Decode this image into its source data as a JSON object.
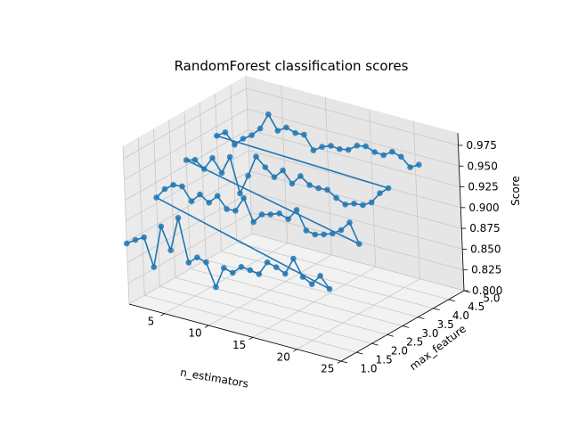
{
  "chart_data": {
    "type": "line",
    "projection": "3d",
    "title": "RandomForest classification scores",
    "xlabel": "n_estimators",
    "ylabel": "max_feature",
    "zlabel": "Score",
    "xlim": [
      1,
      25
    ],
    "ylim": [
      1.0,
      5.0
    ],
    "zlim": [
      0.8,
      0.99
    ],
    "xticks": [
      "5",
      "10",
      "15",
      "20",
      "25"
    ],
    "yticks": [
      "1.0",
      "1.5",
      "2.0",
      "2.5",
      "3.0",
      "3.5",
      "4.0",
      "4.5",
      "5.0"
    ],
    "zticks": [
      "0.800",
      "0.825",
      "0.850",
      "0.875",
      "0.900",
      "0.925",
      "0.950",
      "0.975"
    ],
    "grid": true,
    "marker": "circle",
    "color": "#1f77b4",
    "series": [
      {
        "x": [
          1,
          2,
          3,
          4,
          5,
          6,
          7,
          8,
          9,
          10,
          11,
          12,
          13,
          14,
          15,
          16,
          17,
          18,
          19,
          20,
          21,
          22,
          23,
          24,
          1,
          2,
          3,
          4,
          5,
          6,
          7,
          8,
          9,
          10,
          11,
          12,
          13,
          14,
          15,
          16,
          17,
          18,
          19,
          20,
          21,
          22,
          23,
          24,
          1,
          2,
          3,
          4,
          5,
          6,
          7,
          8,
          9,
          10,
          11,
          12,
          13,
          14,
          15,
          16,
          17,
          18,
          19,
          20,
          21,
          22,
          23,
          24,
          1,
          2,
          3,
          4,
          5,
          6,
          7,
          8,
          9,
          10,
          11,
          12,
          13,
          14,
          15,
          16,
          17,
          18,
          19,
          20,
          21,
          22,
          23,
          24
        ],
        "y": [
          1,
          1,
          1,
          1,
          1,
          1,
          1,
          1,
          1,
          1,
          1,
          1,
          1,
          1,
          1,
          1,
          1,
          1,
          1,
          1,
          1,
          1,
          1,
          1,
          2,
          2,
          2,
          2,
          2,
          2,
          2,
          2,
          2,
          2,
          2,
          2,
          2,
          2,
          2,
          2,
          2,
          2,
          2,
          2,
          2,
          2,
          2,
          2,
          3,
          3,
          3,
          3,
          3,
          3,
          3,
          3,
          3,
          3,
          3,
          3,
          3,
          3,
          3,
          3,
          3,
          3,
          3,
          3,
          3,
          3,
          3,
          3,
          4,
          4,
          4,
          4,
          4,
          4,
          4,
          4,
          4,
          4,
          4,
          4,
          4,
          4,
          4,
          4,
          4,
          4,
          4,
          4,
          4,
          4,
          4,
          4
        ],
        "z": [
          0.873,
          0.88,
          0.886,
          0.853,
          0.905,
          0.879,
          0.921,
          0.87,
          0.879,
          0.876,
          0.849,
          0.875,
          0.872,
          0.882,
          0.881,
          0.879,
          0.896,
          0.893,
          0.888,
          0.909,
          0.89,
          0.884,
          0.897,
          0.884,
          0.907,
          0.92,
          0.928,
          0.929,
          0.914,
          0.925,
          0.918,
          0.929,
          0.916,
          0.917,
          0.935,
          0.909,
          0.921,
          0.924,
          0.928,
          0.924,
          0.938,
          0.916,
          0.914,
          0.917,
          0.921,
          0.928,
          0.94,
          0.917,
          0.931,
          0.934,
          0.926,
          0.942,
          0.927,
          0.949,
          0.908,
          0.932,
          0.958,
          0.948,
          0.939,
          0.95,
          0.937,
          0.949,
          0.941,
          0.94,
          0.941,
          0.934,
          0.929,
          0.933,
          0.934,
          0.94,
          0.954,
          0.963,
          0.939,
          0.946,
          0.934,
          0.944,
          0.951,
          0.962,
          0.982,
          0.965,
          0.972,
          0.968,
          0.969,
          0.953,
          0.96,
          0.964,
          0.963,
          0.965,
          0.973,
          0.975,
          0.971,
          0.97,
          0.977,
          0.974,
          0.964,
          0.97
        ]
      }
    ]
  }
}
